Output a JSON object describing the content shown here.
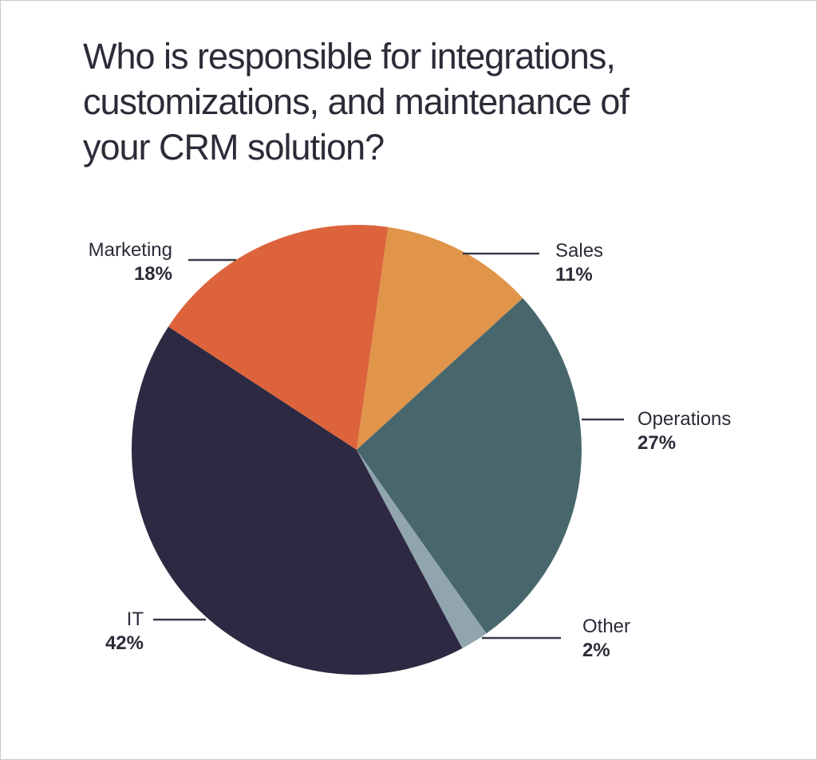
{
  "title_lines": [
    "Who is responsible for integrations,",
    "customizations, and maintenance of",
    "your CRM solution?"
  ],
  "labels": {
    "marketing": {
      "name": "Marketing",
      "pct": "18%"
    },
    "sales": {
      "name": "Sales",
      "pct": "11%"
    },
    "operations": {
      "name": "Operations",
      "pct": "27%"
    },
    "other": {
      "name": "Other",
      "pct": "2%"
    },
    "it": {
      "name": "IT",
      "pct": "42%"
    }
  },
  "chart_data": {
    "type": "pie",
    "title": "Who is responsible for integrations, customizations, and maintenance of your CRM solution?",
    "categories": [
      "Sales",
      "Operations",
      "Other",
      "IT",
      "Marketing"
    ],
    "values": [
      11,
      27,
      2,
      42,
      18
    ],
    "unit": "%",
    "colors": [
      "#e0954a",
      "#48676d",
      "#90a5ad",
      "#2e2942",
      "#dc633b"
    ],
    "start_angle_deg": 8,
    "direction": "clockwise",
    "legend": "direct labels with leader lines"
  }
}
